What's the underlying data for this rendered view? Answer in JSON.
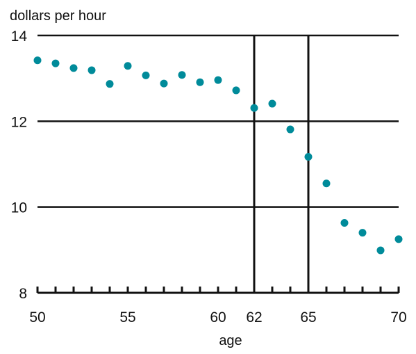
{
  "chart_data": {
    "type": "scatter",
    "title": "",
    "ylabel": "dollars per hour",
    "xlabel": "age",
    "xlim": [
      50,
      70
    ],
    "ylim": [
      8,
      14
    ],
    "x_ticks": [
      50,
      55,
      60,
      62,
      65,
      70
    ],
    "y_ticks": [
      8,
      10,
      12,
      14
    ],
    "minor_x_ticks": [
      50,
      51,
      52,
      53,
      54,
      55,
      56,
      57,
      58,
      59,
      60,
      61,
      62,
      63,
      64,
      65,
      66,
      67,
      68,
      69,
      70
    ],
    "horizontal_gridlines": [
      10,
      12,
      14
    ],
    "vertical_reference_lines": [
      62,
      65
    ],
    "series": [
      {
        "x": [
          50,
          51,
          52,
          53,
          54,
          55,
          56,
          57,
          58,
          59,
          60,
          61,
          62,
          63,
          64,
          65,
          66,
          67,
          68,
          69,
          70
        ],
        "y": [
          13.42,
          13.35,
          13.24,
          13.19,
          12.87,
          13.29,
          13.07,
          12.88,
          13.08,
          12.91,
          12.96,
          12.72,
          12.31,
          12.41,
          11.81,
          11.17,
          10.55,
          9.63,
          9.4,
          8.99,
          9.25
        ]
      }
    ],
    "grid": "horizontal",
    "legend": "none"
  },
  "colors": {
    "points": "#008b9a",
    "axes": "#111111"
  }
}
